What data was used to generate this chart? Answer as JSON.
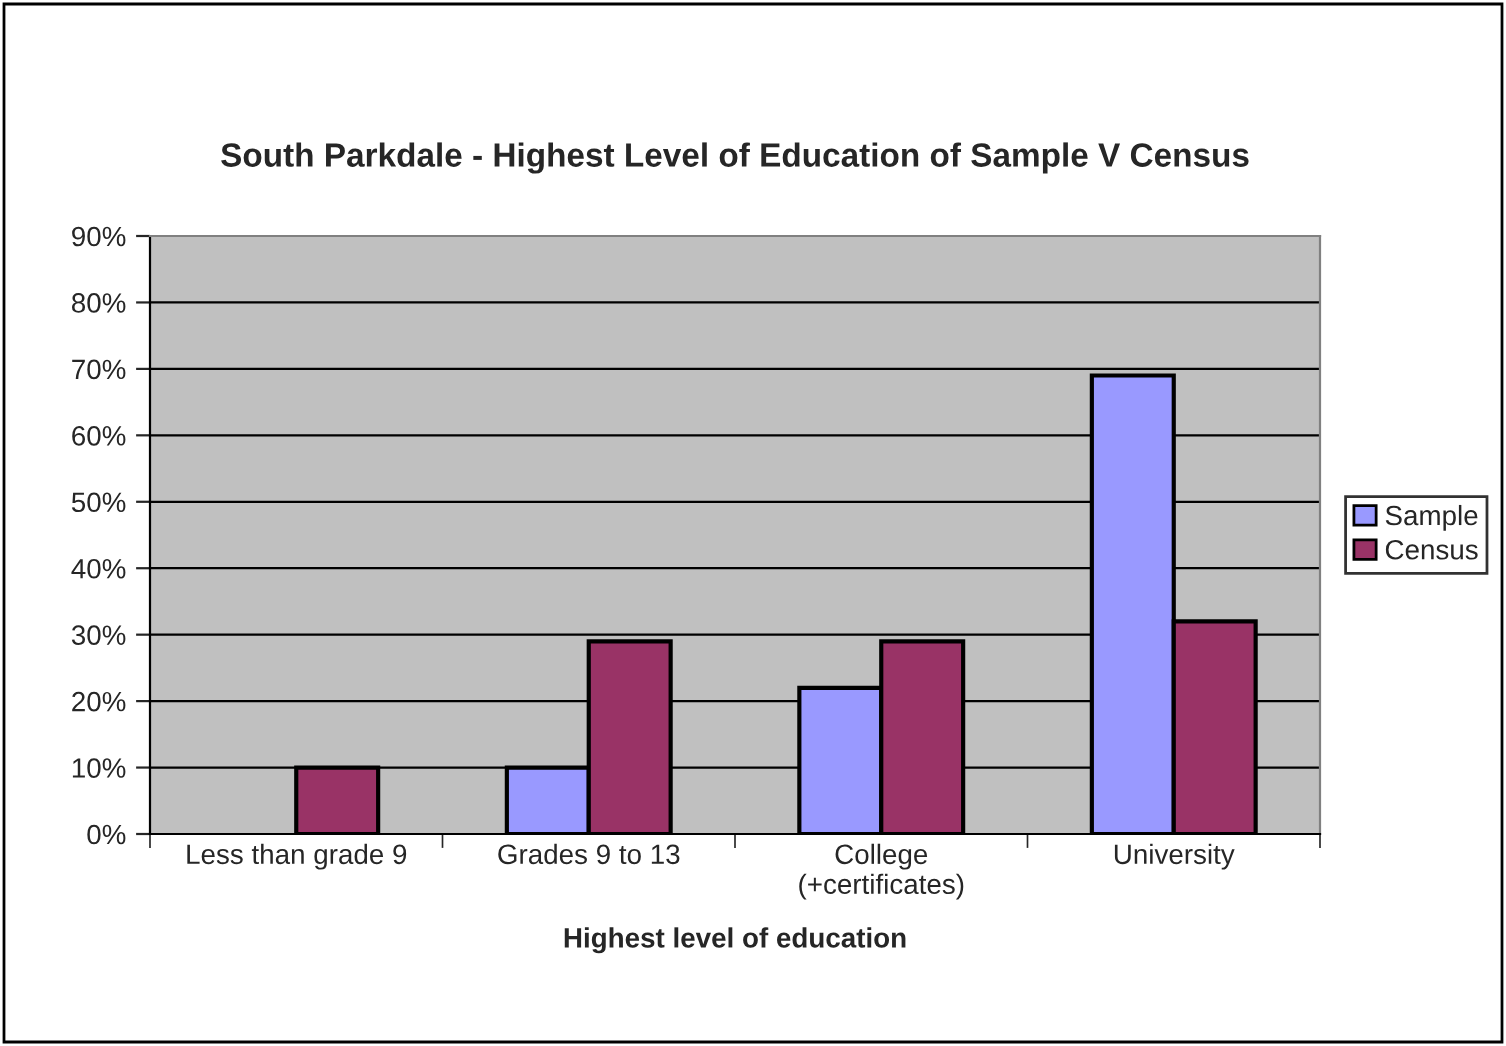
{
  "chart_data": {
    "type": "bar",
    "title": "South Parkdale - Highest Level of Education of Sample V Census",
    "xlabel": "Highest level of education",
    "categories": [
      "Less than grade 9",
      "Grades 9 to 13",
      "College\n(+certificates)",
      "University"
    ],
    "series": [
      {
        "name": "Sample",
        "color": "#9999ff",
        "values": [
          null,
          10,
          22,
          69
        ]
      },
      {
        "name": "Census",
        "color": "#993366",
        "values": [
          10,
          29,
          29,
          32
        ]
      }
    ],
    "ylim": [
      0,
      90
    ],
    "yticks": [
      {
        "value": 0,
        "label": "0%"
      },
      {
        "value": 10,
        "label": "10%"
      },
      {
        "value": 20,
        "label": "20%"
      },
      {
        "value": 30,
        "label": "30%"
      },
      {
        "value": 40,
        "label": "40%"
      },
      {
        "value": 50,
        "label": "50%"
      },
      {
        "value": 60,
        "label": "60%"
      },
      {
        "value": 70,
        "label": "70%"
      },
      {
        "value": 80,
        "label": "80%"
      },
      {
        "value": 90,
        "label": "90%"
      }
    ],
    "grid": "y",
    "legend": "right"
  }
}
